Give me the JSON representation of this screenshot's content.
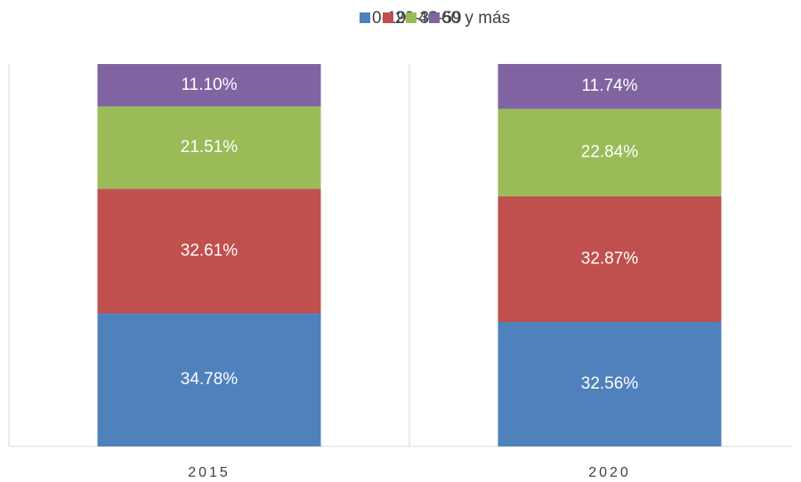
{
  "chart_data": {
    "type": "stacked-bar",
    "categories": [
      "2015",
      "2020"
    ],
    "series": [
      {
        "name": "0-19",
        "color": "#4f81bd",
        "values": [
          34.78,
          32.56
        ],
        "value_labels": [
          "34.78%",
          "32.56%"
        ]
      },
      {
        "name": "20-39",
        "color": "#c0504d",
        "values": [
          32.61,
          32.87
        ],
        "value_labels": [
          "32.61%",
          "32.87%"
        ]
      },
      {
        "name": "40-59",
        "color": "#9bbb59",
        "values": [
          21.51,
          22.84
        ],
        "value_labels": [
          "21.51%",
          "22.84%"
        ]
      },
      {
        "name": "60 y más",
        "color": "#8064a2",
        "values": [
          11.1,
          11.74
        ],
        "value_labels": [
          "11.10%",
          "11.74%"
        ]
      }
    ],
    "ylim": [
      0,
      100
    ],
    "legend": "top"
  }
}
